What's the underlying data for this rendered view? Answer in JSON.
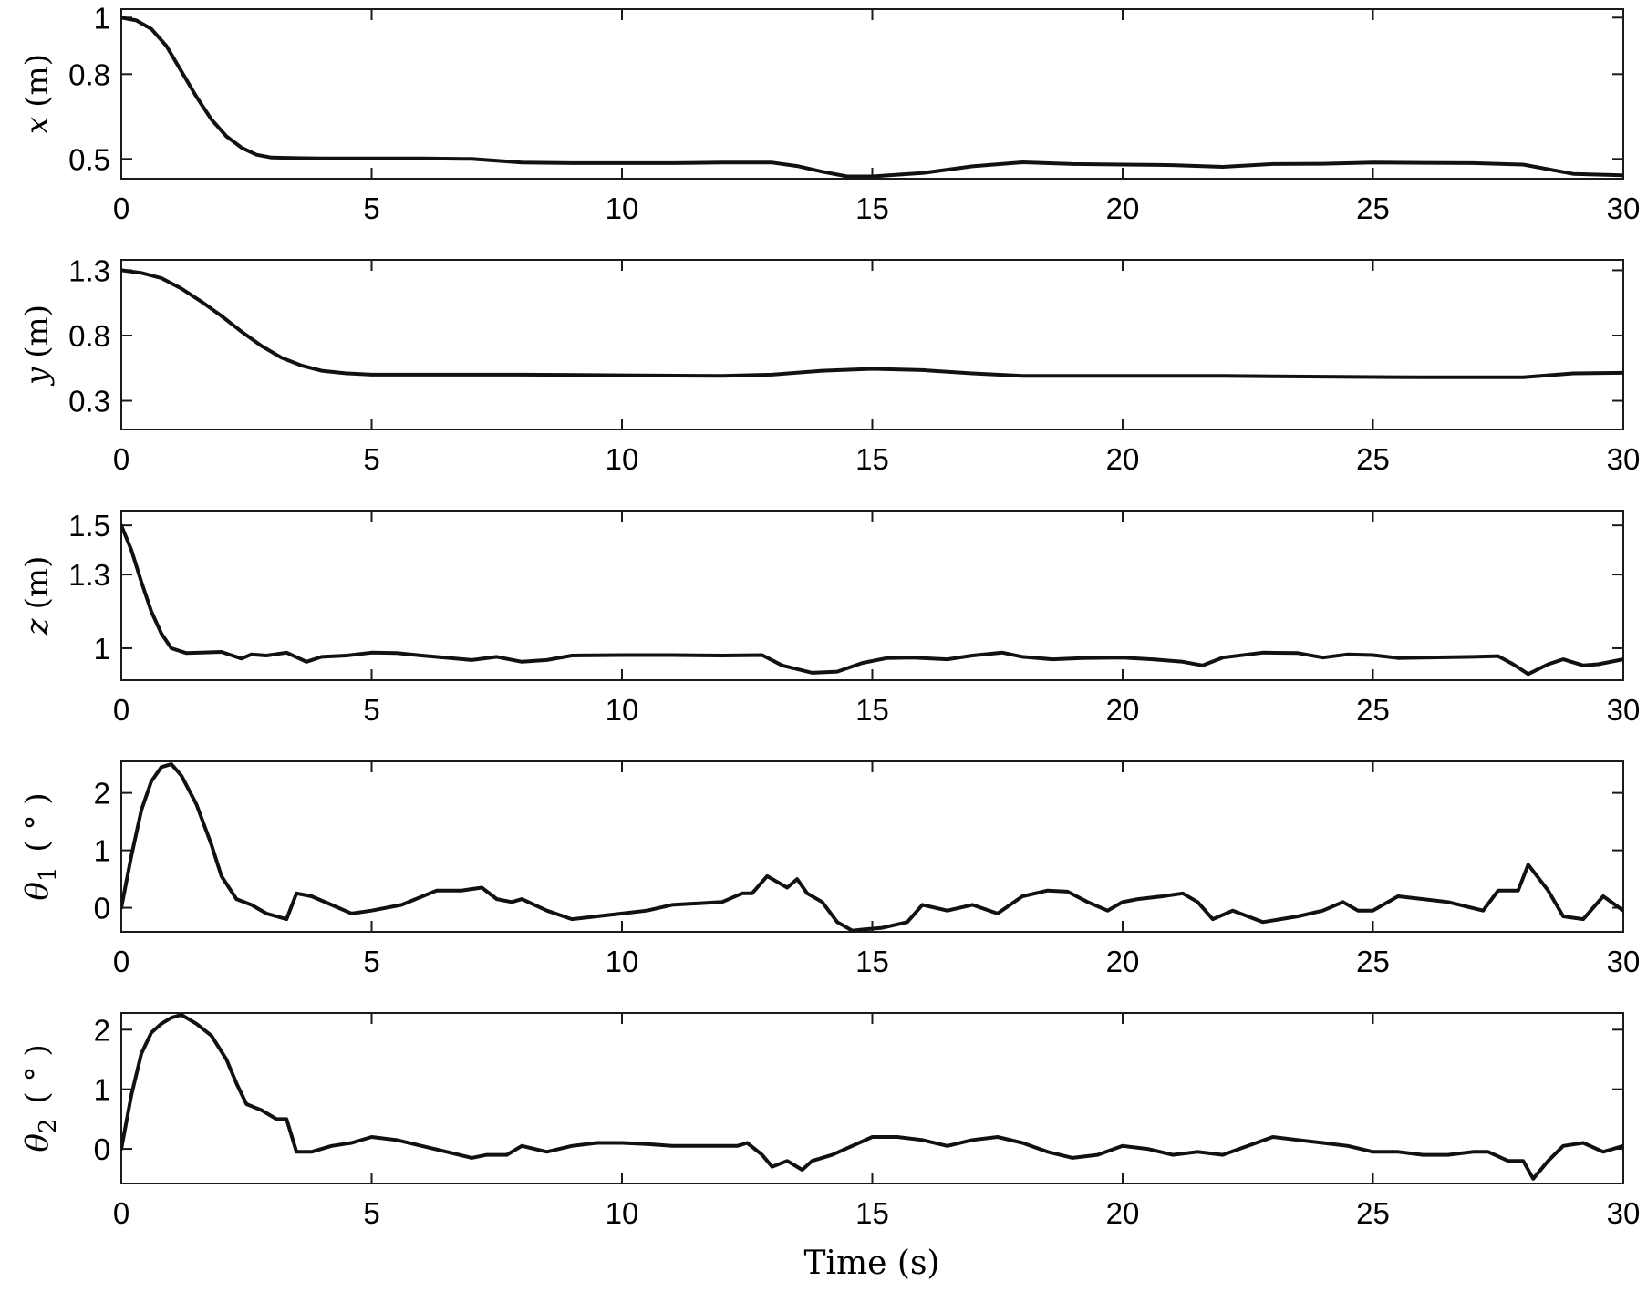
{
  "chart_data": [
    {
      "type": "line",
      "ylabel_var": "x",
      "ylabel_unit": "(m)",
      "xlim": [
        0,
        30
      ],
      "ylim": [
        0.43,
        1.03
      ],
      "xticks": [
        0,
        5,
        10,
        15,
        20,
        25,
        30
      ],
      "yticks": [
        0.5,
        0.8,
        1
      ],
      "ytick_labels": [
        "0.5",
        "0.8",
        "1"
      ],
      "x": [
        0,
        0.3,
        0.6,
        0.9,
        1.2,
        1.5,
        1.8,
        2.1,
        2.4,
        2.7,
        3,
        3.5,
        4,
        5,
        6,
        7,
        8,
        9,
        10,
        11,
        12,
        13,
        13.5,
        14,
        14.5,
        15,
        16,
        17,
        18,
        19,
        20,
        21,
        22,
        23,
        24,
        25,
        26,
        27,
        28,
        29,
        30
      ],
      "y": [
        1.0,
        0.99,
        0.96,
        0.9,
        0.81,
        0.72,
        0.64,
        0.58,
        0.54,
        0.515,
        0.505,
        0.503,
        0.502,
        0.502,
        0.502,
        0.5,
        0.487,
        0.485,
        0.485,
        0.485,
        0.487,
        0.487,
        0.475,
        0.455,
        0.438,
        0.438,
        0.45,
        0.474,
        0.488,
        0.482,
        0.48,
        0.478,
        0.472,
        0.482,
        0.483,
        0.487,
        0.486,
        0.485,
        0.48,
        0.447,
        0.442
      ]
    },
    {
      "type": "line",
      "ylabel_var": "y",
      "ylabel_unit": "(m)",
      "xlim": [
        0,
        30
      ],
      "ylim": [
        0.08,
        1.38
      ],
      "xticks": [
        0,
        5,
        10,
        15,
        20,
        25,
        30
      ],
      "yticks": [
        0.3,
        0.8,
        1.3
      ],
      "ytick_labels": [
        "0.3",
        "0.8",
        "1.3"
      ],
      "x": [
        0,
        0.4,
        0.8,
        1.2,
        1.6,
        2,
        2.4,
        2.8,
        3.2,
        3.6,
        4,
        4.5,
        5,
        6,
        8,
        10,
        12,
        13,
        14,
        15,
        16,
        17,
        18,
        20,
        22,
        24,
        26,
        28,
        29,
        30
      ],
      "y": [
        1.3,
        1.28,
        1.24,
        1.16,
        1.06,
        0.95,
        0.83,
        0.72,
        0.63,
        0.57,
        0.53,
        0.51,
        0.5,
        0.5,
        0.5,
        0.495,
        0.49,
        0.5,
        0.53,
        0.545,
        0.535,
        0.51,
        0.49,
        0.49,
        0.49,
        0.485,
        0.48,
        0.48,
        0.51,
        0.515
      ]
    },
    {
      "type": "line",
      "ylabel_var": "z",
      "ylabel_unit": "(m)",
      "xlim": [
        0,
        30
      ],
      "ylim": [
        0.87,
        1.56
      ],
      "xticks": [
        0,
        5,
        10,
        15,
        20,
        25,
        30
      ],
      "yticks": [
        1,
        1.3,
        1.5
      ],
      "ytick_labels": [
        "1",
        "1.3",
        "1.5"
      ],
      "x": [
        0,
        0.2,
        0.4,
        0.6,
        0.8,
        1,
        1.3,
        1.6,
        2,
        2.4,
        2.6,
        2.9,
        3.3,
        3.7,
        4,
        4.5,
        5,
        5.5,
        6,
        7,
        7.5,
        8,
        8.5,
        9,
        10,
        11,
        12,
        12.8,
        13.2,
        13.8,
        14.3,
        14.8,
        15.3,
        15.8,
        16.5,
        17,
        17.6,
        18,
        18.6,
        19.2,
        20,
        20.6,
        21.2,
        21.6,
        22,
        22.8,
        23.5,
        24,
        24.5,
        25,
        25.5,
        26,
        27,
        27.5,
        27.8,
        28.1,
        28.5,
        28.8,
        29.2,
        29.5,
        30
      ],
      "y": [
        1.5,
        1.4,
        1.27,
        1.15,
        1.06,
        1.0,
        0.98,
        0.982,
        0.985,
        0.958,
        0.975,
        0.97,
        0.982,
        0.945,
        0.965,
        0.97,
        0.982,
        0.98,
        0.97,
        0.952,
        0.965,
        0.945,
        0.952,
        0.97,
        0.972,
        0.972,
        0.97,
        0.972,
        0.93,
        0.9,
        0.905,
        0.94,
        0.96,
        0.962,
        0.955,
        0.97,
        0.982,
        0.965,
        0.955,
        0.96,
        0.962,
        0.955,
        0.945,
        0.93,
        0.962,
        0.982,
        0.98,
        0.962,
        0.975,
        0.972,
        0.96,
        0.962,
        0.965,
        0.968,
        0.935,
        0.895,
        0.935,
        0.955,
        0.93,
        0.935,
        0.955
      ]
    },
    {
      "type": "line",
      "ylabel_var": "θ",
      "ylabel_sub": "1",
      "ylabel_unit": "( ° )",
      "xlim": [
        0,
        30
      ],
      "ylim": [
        -0.42,
        2.55
      ],
      "xticks": [
        0,
        5,
        10,
        15,
        20,
        25,
        30
      ],
      "yticks": [
        0,
        1,
        2
      ],
      "ytick_labels": [
        "0",
        "1",
        "2"
      ],
      "x": [
        0,
        0.2,
        0.4,
        0.6,
        0.8,
        1,
        1.2,
        1.5,
        1.8,
        2,
        2.3,
        2.6,
        2.9,
        3.1,
        3.3,
        3.5,
        3.8,
        4.2,
        4.6,
        5,
        5.6,
        6.3,
        6.8,
        7.2,
        7.5,
        7.8,
        8,
        8.5,
        9,
        9.5,
        10,
        10.5,
        11,
        12,
        12.4,
        12.6,
        12.9,
        13.1,
        13.3,
        13.5,
        13.7,
        14,
        14.3,
        14.6,
        14.8,
        15.2,
        15.7,
        16,
        16.5,
        17,
        17.5,
        18,
        18.5,
        18.9,
        19.3,
        19.7,
        20,
        20.3,
        20.8,
        21.2,
        21.5,
        21.8,
        22.2,
        22.8,
        23.5,
        24,
        24.4,
        24.7,
        25,
        25.5,
        26,
        26.5,
        27.2,
        27.5,
        27.9,
        28.1,
        28.5,
        28.8,
        29.2,
        29.6,
        30
      ],
      "y": [
        0,
        0.9,
        1.7,
        2.2,
        2.45,
        2.5,
        2.3,
        1.8,
        1.1,
        0.55,
        0.15,
        0.05,
        -0.1,
        -0.15,
        -0.2,
        0.25,
        0.2,
        0.05,
        -0.1,
        -0.05,
        0.05,
        0.3,
        0.3,
        0.35,
        0.15,
        0.1,
        0.15,
        -0.05,
        -0.2,
        -0.15,
        -0.1,
        -0.05,
        0.05,
        0.1,
        0.25,
        0.25,
        0.55,
        0.45,
        0.35,
        0.5,
        0.25,
        0.1,
        -0.25,
        -0.4,
        -0.38,
        -0.35,
        -0.25,
        0.05,
        -0.05,
        0.05,
        -0.1,
        0.2,
        0.3,
        0.28,
        0.1,
        -0.05,
        0.1,
        0.15,
        0.2,
        0.25,
        0.1,
        -0.2,
        -0.05,
        -0.25,
        -0.15,
        -0.05,
        0.1,
        -0.05,
        -0.05,
        0.2,
        0.15,
        0.1,
        -0.05,
        0.3,
        0.3,
        0.75,
        0.3,
        -0.15,
        -0.2,
        0.2,
        -0.05
      ]
    },
    {
      "type": "line",
      "ylabel_var": "θ",
      "ylabel_sub": "2",
      "ylabel_unit": "( ° )",
      "xlim": [
        0,
        30
      ],
      "ylim": [
        -0.58,
        2.28
      ],
      "xticks": [
        0,
        5,
        10,
        15,
        20,
        25,
        30
      ],
      "yticks": [
        0,
        1,
        2
      ],
      "ytick_labels": [
        "0",
        "1",
        "2"
      ],
      "x": [
        0,
        0.2,
        0.4,
        0.6,
        0.8,
        1,
        1.2,
        1.5,
        1.8,
        2.1,
        2.3,
        2.5,
        2.8,
        3.1,
        3.3,
        3.5,
        3.8,
        4.2,
        4.6,
        5,
        5.5,
        6,
        6.5,
        7,
        7.3,
        7.7,
        8,
        8.5,
        9,
        9.5,
        10,
        10.5,
        11,
        12,
        12.3,
        12.5,
        12.8,
        13,
        13.3,
        13.6,
        13.8,
        14.2,
        14.6,
        15,
        15.5,
        16,
        16.5,
        17,
        17.5,
        18,
        18.5,
        19,
        19.5,
        20,
        20.5,
        21,
        21.5,
        22,
        22.5,
        23,
        23.5,
        24,
        24.5,
        25,
        25.5,
        26,
        26.5,
        27,
        27.3,
        27.7,
        28,
        28.2,
        28.5,
        28.8,
        29.2,
        29.6,
        30
      ],
      "y": [
        0,
        0.9,
        1.6,
        1.95,
        2.1,
        2.2,
        2.25,
        2.1,
        1.9,
        1.5,
        1.1,
        0.75,
        0.65,
        0.5,
        0.5,
        -0.05,
        -0.05,
        0.05,
        0.1,
        0.2,
        0.15,
        0.05,
        -0.05,
        -0.15,
        -0.1,
        -0.1,
        0.05,
        -0.05,
        0.05,
        0.1,
        0.1,
        0.08,
        0.05,
        0.05,
        0.05,
        0.1,
        -0.1,
        -0.3,
        -0.2,
        -0.35,
        -0.2,
        -0.1,
        0.05,
        0.2,
        0.2,
        0.15,
        0.05,
        0.15,
        0.2,
        0.1,
        -0.05,
        -0.15,
        -0.1,
        0.05,
        0.0,
        -0.1,
        -0.05,
        -0.1,
        0.05,
        0.2,
        0.15,
        0.1,
        0.05,
        -0.05,
        -0.05,
        -0.1,
        -0.1,
        -0.05,
        -0.05,
        -0.2,
        -0.2,
        -0.5,
        -0.2,
        0.05,
        0.1,
        -0.05,
        0.05
      ]
    }
  ],
  "xlabel": "Time (s)"
}
